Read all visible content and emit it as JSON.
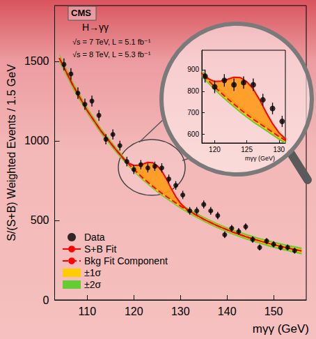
{
  "chart_data": {
    "type": "scatter",
    "x_label": "mγγ (GeV)",
    "y_label": "S/(S+B) Weighted Events / 1.5 GeV",
    "annotations": [
      "CMS",
      "H→γγ",
      "√s = 7 TeV, L = 5.1 fb⁻¹",
      "√s = 8 TeV, L = 5.3 fb⁻¹"
    ],
    "xlim": [
      103,
      157
    ],
    "ylim": [
      0,
      1850
    ],
    "xticks": [
      110,
      120,
      130,
      140,
      150
    ],
    "yticks": [
      0,
      500,
      1000,
      1500
    ],
    "grid": false,
    "legend": "lower left",
    "series": [
      {
        "name": "Data",
        "type": "scatter",
        "marker": "circle",
        "color": "#000000",
        "x": [
          105,
          106.5,
          108,
          109.5,
          111,
          112.5,
          114,
          115.5,
          117,
          118.5,
          120,
          121.5,
          123,
          124.5,
          126,
          127.5,
          129,
          130.5,
          132,
          133.5,
          135,
          136.5,
          138,
          139.5,
          141,
          142.5,
          144,
          145.5,
          147,
          148.5,
          150,
          151.5,
          153,
          154.5
        ],
        "values": [
          1480,
          1420,
          1300,
          1230,
          1250,
          1160,
          1010,
          1040,
          970,
          870,
          820,
          850,
          830,
          840,
          830,
          760,
          720,
          660,
          560,
          560,
          600,
          560,
          530,
          410,
          450,
          430,
          460,
          380,
          330,
          370,
          350,
          330,
          330,
          310
        ],
        "errors": [
          38,
          37,
          36,
          35,
          35,
          34,
          32,
          32,
          31,
          30,
          29,
          29,
          29,
          29,
          29,
          28,
          27,
          26,
          24,
          24,
          25,
          24,
          23,
          21,
          21,
          21,
          21,
          20,
          19,
          19,
          19,
          18,
          18,
          18
        ]
      },
      {
        "name": "S+B Fit",
        "type": "line",
        "line_style": "solid",
        "color": "#ff0000",
        "x": [
          104,
          107,
          110,
          113,
          116,
          118,
          119,
          120,
          121,
          122,
          123,
          124,
          125,
          126,
          127,
          128,
          129,
          130,
          131,
          132,
          135,
          138,
          141,
          144,
          147,
          150,
          153,
          156
        ],
        "values": [
          1520,
          1345,
          1190,
          1060,
          950,
          882,
          858,
          845,
          847,
          855,
          865,
          863,
          844,
          810,
          760,
          702,
          650,
          608,
          579,
          557,
          507,
          465,
          429,
          398,
          371,
          347,
          326,
          308
        ]
      },
      {
        "name": "Bkg Fit Component",
        "type": "line",
        "line_style": "dashed",
        "color": "#ff0000",
        "x": [
          104,
          107,
          110,
          113,
          116,
          118,
          119,
          120,
          121,
          122,
          123,
          124,
          125,
          126,
          127,
          128,
          129,
          130,
          131,
          132,
          135,
          138,
          141,
          144,
          147,
          150,
          153,
          156
        ],
        "values": [
          1520,
          1345,
          1190,
          1060,
          950,
          880,
          850,
          820,
          792,
          765,
          740,
          715,
          692,
          670,
          650,
          630,
          610,
          590,
          572,
          555,
          507,
          465,
          429,
          398,
          371,
          347,
          326,
          308
        ]
      },
      {
        "name": "±1σ",
        "type": "band",
        "color": "#ffcc00",
        "x": [
          104,
          107,
          110,
          113,
          116,
          118,
          119,
          120,
          121,
          122,
          123,
          124,
          125,
          126,
          127,
          128,
          129,
          130,
          131,
          132,
          135,
          138,
          141,
          144,
          147,
          150,
          153,
          156
        ],
        "lower": [
          1506,
          1333,
          1179,
          1050,
          941,
          872,
          842,
          812,
          784,
          757,
          732,
          707,
          684,
          662,
          642,
          622,
          602,
          582,
          564,
          547,
          499,
          457,
          421,
          389,
          362,
          337,
          316,
          297
        ],
        "upper": [
          1534,
          1357,
          1201,
          1070,
          959,
          888,
          858,
          828,
          800,
          773,
          748,
          723,
          700,
          678,
          658,
          638,
          618,
          598,
          580,
          563,
          515,
          473,
          437,
          407,
          380,
          357,
          336,
          319
        ]
      },
      {
        "name": "±2σ",
        "type": "band",
        "color": "#66cc33",
        "x": [
          104,
          107,
          110,
          113,
          116,
          118,
          119,
          120,
          121,
          122,
          123,
          124,
          125,
          126,
          127,
          128,
          129,
          130,
          131,
          132,
          135,
          138,
          141,
          144,
          147,
          150,
          153,
          156
        ],
        "lower": [
          1492,
          1321,
          1168,
          1040,
          932,
          864,
          834,
          804,
          776,
          749,
          724,
          699,
          676,
          654,
          634,
          614,
          594,
          574,
          556,
          539,
          491,
          449,
          413,
          380,
          353,
          327,
          306,
          286
        ],
        "upper": [
          1548,
          1369,
          1212,
          1080,
          968,
          896,
          866,
          836,
          808,
          781,
          756,
          731,
          708,
          686,
          666,
          646,
          626,
          606,
          588,
          571,
          523,
          481,
          445,
          416,
          389,
          367,
          346,
          330
        ]
      }
    ],
    "inset": {
      "xlim": [
        118,
        131
      ],
      "ylim": [
        560,
        990
      ],
      "xticks": [
        120,
        125,
        130
      ],
      "yticks": [
        600,
        700,
        800,
        900
      ],
      "x_label": "mγγ (GeV)"
    }
  }
}
